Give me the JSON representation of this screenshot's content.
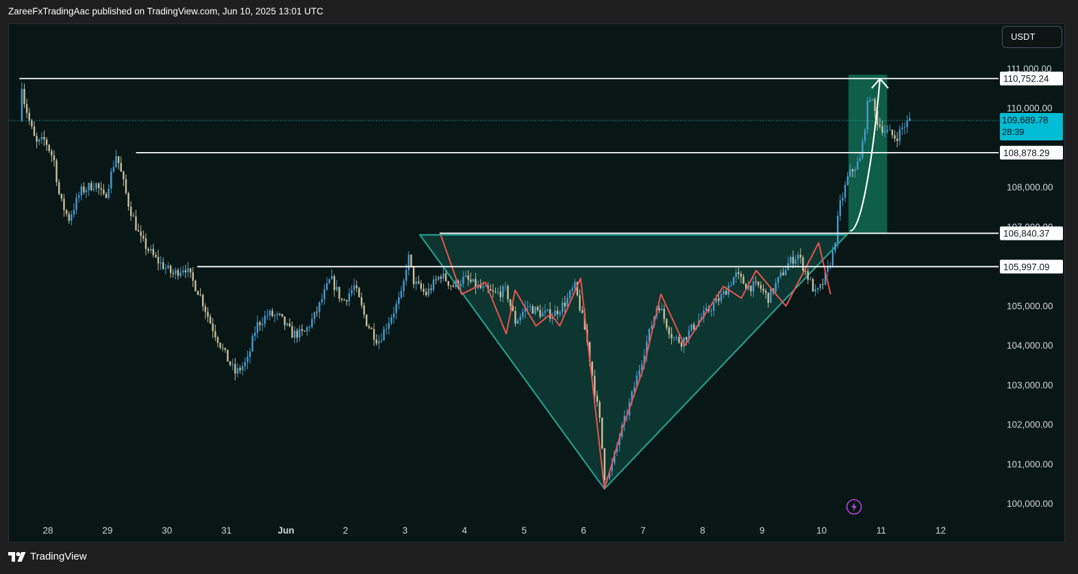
{
  "header": {
    "text": "ZareeFxTradingAac published on TradingView.com, Jun 10, 2025 13:01 UTC"
  },
  "currency": "USDT",
  "footer": {
    "brand": "TradingView",
    "logo_icon": "tradingview-logo-icon"
  },
  "colors": {
    "background": "#081716",
    "candle": "#cdbf9c",
    "candle_alt": "#4a9bd1",
    "level_line": "#ffffff",
    "pattern_fill": "#0e3a33",
    "pattern_stroke": "#26a69a",
    "zigzag": "#ef5350",
    "target_box": "#0f6b52",
    "last_price_bg": "#00bcd4"
  },
  "chart_data": {
    "type": "candlestick",
    "x_axis": {
      "labels": [
        "28",
        "29",
        "30",
        "31",
        "Jun",
        "2",
        "3",
        "4",
        "5",
        "6",
        "7",
        "8",
        "9",
        "10",
        "11",
        "12"
      ]
    },
    "y_axis": {
      "range": [
        99700,
        111300
      ],
      "ticks": [
        "100,000.00",
        "101,000.00",
        "102,000.00",
        "103,000.00",
        "104,000.00",
        "105,000.00",
        "107,000.00",
        "108,000.00",
        "108,878.29",
        "110,000.00",
        "111,000.00"
      ]
    },
    "series_path": [
      [
        -0.48,
        109700
      ],
      [
        -0.45,
        110750
      ],
      [
        -0.4,
        110200
      ],
      [
        -0.3,
        109600
      ],
      [
        -0.2,
        109100
      ],
      [
        -0.05,
        109200
      ],
      [
        0.1,
        108700
      ],
      [
        0.2,
        107700
      ],
      [
        0.35,
        107200
      ],
      [
        0.55,
        107900
      ],
      [
        0.8,
        108100
      ],
      [
        0.95,
        107700
      ],
      [
        1.15,
        108850
      ],
      [
        1.35,
        107600
      ],
      [
        1.55,
        106700
      ],
      [
        1.8,
        106200
      ],
      [
        2.1,
        105800
      ],
      [
        2.3,
        106000
      ],
      [
        2.55,
        105300
      ],
      [
        2.75,
        104500
      ],
      [
        3.0,
        103700
      ],
      [
        3.15,
        103300
      ],
      [
        3.35,
        103600
      ],
      [
        3.5,
        104500
      ],
      [
        3.7,
        104800
      ],
      [
        3.9,
        104700
      ],
      [
        4.1,
        104300
      ],
      [
        4.3,
        104300
      ],
      [
        4.5,
        104800
      ],
      [
        4.75,
        105700
      ],
      [
        4.95,
        105100
      ],
      [
        5.15,
        105500
      ],
      [
        5.35,
        104600
      ],
      [
        5.55,
        104100
      ],
      [
        5.75,
        104700
      ],
      [
        5.95,
        105300
      ],
      [
        6.05,
        106300
      ],
      [
        6.15,
        105600
      ],
      [
        6.35,
        105300
      ],
      [
        6.6,
        105800
      ],
      [
        6.8,
        105500
      ],
      [
        7.0,
        105700
      ],
      [
        7.2,
        105500
      ],
      [
        7.5,
        105300
      ],
      [
        7.7,
        105400
      ],
      [
        7.85,
        104600
      ],
      [
        8.05,
        105000
      ],
      [
        8.3,
        104800
      ],
      [
        8.5,
        104800
      ],
      [
        8.7,
        105100
      ],
      [
        8.85,
        105500
      ],
      [
        8.95,
        104900
      ],
      [
        9.05,
        104200
      ],
      [
        9.15,
        103200
      ],
      [
        9.28,
        102000
      ],
      [
        9.35,
        100700
      ],
      [
        9.45,
        100800
      ],
      [
        9.6,
        101700
      ],
      [
        9.75,
        102400
      ],
      [
        9.95,
        103500
      ],
      [
        10.1,
        104300
      ],
      [
        10.25,
        105100
      ],
      [
        10.35,
        104700
      ],
      [
        10.5,
        104200
      ],
      [
        10.65,
        104100
      ],
      [
        10.85,
        104500
      ],
      [
        11.1,
        104900
      ],
      [
        11.35,
        105300
      ],
      [
        11.55,
        105800
      ],
      [
        11.75,
        105500
      ],
      [
        11.95,
        105500
      ],
      [
        12.1,
        105200
      ],
      [
        12.25,
        105600
      ],
      [
        12.45,
        106100
      ],
      [
        12.6,
        106300
      ],
      [
        12.75,
        105800
      ],
      [
        12.9,
        105300
      ],
      [
        13.0,
        105500
      ],
      [
        13.1,
        105900
      ],
      [
        13.2,
        106400
      ],
      [
        13.3,
        107500
      ],
      [
        13.45,
        108300
      ],
      [
        13.65,
        108700
      ],
      [
        13.8,
        110400
      ],
      [
        13.95,
        109600
      ],
      [
        14.1,
        109400
      ],
      [
        14.25,
        109250
      ],
      [
        14.35,
        109500
      ],
      [
        14.48,
        109700
      ]
    ],
    "horizontal_levels": [
      {
        "label": "110,752.24",
        "price": 110752.24,
        "x_start": -0.48
      },
      {
        "label": "108,878.29",
        "price": 108878.29,
        "x_start": 1.48
      },
      {
        "label": "106,840.37",
        "price": 106840.37,
        "x_start": 6.58
      },
      {
        "label": "105,997.09",
        "price": 105997.09,
        "x_start": 2.51
      }
    ],
    "last_price": {
      "price": 109689.78,
      "label": "109,689.78",
      "countdown": "28:39"
    },
    "inverted_triangle": [
      [
        6.25,
        106800
      ],
      [
        13.42,
        106800
      ],
      [
        9.35,
        100380
      ]
    ],
    "zigzag": [
      [
        6.6,
        106800
      ],
      [
        6.95,
        105300
      ],
      [
        7.35,
        105600
      ],
      [
        7.7,
        104300
      ],
      [
        7.85,
        105400
      ],
      [
        8.2,
        104500
      ],
      [
        8.45,
        104800
      ],
      [
        8.6,
        104500
      ],
      [
        8.95,
        105700
      ],
      [
        9.35,
        100380
      ],
      [
        9.65,
        101900
      ],
      [
        10.0,
        103400
      ],
      [
        10.3,
        105300
      ],
      [
        10.7,
        104000
      ],
      [
        11.0,
        104700
      ],
      [
        11.35,
        105500
      ],
      [
        11.65,
        105200
      ],
      [
        11.9,
        105900
      ],
      [
        12.4,
        105000
      ],
      [
        12.95,
        106600
      ],
      [
        13.15,
        105300
      ]
    ],
    "target_box": {
      "x0": 13.45,
      "x1": 14.1,
      "y0": 110850,
      "y1": 106820
    },
    "target_arrow": [
      [
        13.48,
        106900
      ],
      [
        13.68,
        106900
      ],
      [
        13.88,
        109000
      ],
      [
        13.98,
        110750
      ]
    ]
  }
}
